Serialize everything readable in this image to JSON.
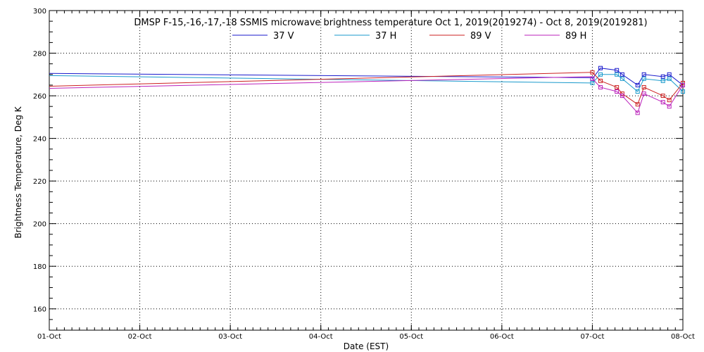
{
  "chart_data": {
    "type": "line",
    "title": "DMSP F-15,-16,-17,-18 SSMIS microwave brightness temperature Oct  1, 2019(2019274) - Oct  8, 2019(2019281)",
    "xlabel": "Date (EST)",
    "ylabel": "Brightness Temperature, Deg K",
    "xlim": [
      1,
      8
    ],
    "ylim": [
      150,
      300
    ],
    "x_unit": "day of October 2019",
    "x_ticks": [
      {
        "value": 1,
        "label": "01-Oct"
      },
      {
        "value": 2,
        "label": "02-Oct"
      },
      {
        "value": 3,
        "label": "03-Oct"
      },
      {
        "value": 4,
        "label": "04-Oct"
      },
      {
        "value": 5,
        "label": "05-Oct"
      },
      {
        "value": 6,
        "label": "06-Oct"
      },
      {
        "value": 7,
        "label": "07-Oct"
      },
      {
        "value": 8,
        "label": "08-Oct"
      }
    ],
    "y_ticks": [
      160,
      180,
      200,
      220,
      240,
      260,
      280,
      300
    ],
    "grid": true,
    "legend_placement": "top-center",
    "series": [
      {
        "name": "37 V",
        "color": "#1a1acc",
        "trend": [
          [
            1,
            270.5
          ],
          [
            7,
            268.5
          ]
        ],
        "points": [
          [
            7.0,
            268
          ],
          [
            7.09,
            273
          ],
          [
            7.27,
            272
          ],
          [
            7.33,
            270
          ],
          [
            7.5,
            265
          ],
          [
            7.57,
            270
          ],
          [
            7.78,
            269
          ],
          [
            7.85,
            270
          ],
          [
            8.0,
            265
          ]
        ]
      },
      {
        "name": "37 H",
        "color": "#1a9acc",
        "trend": [
          [
            1,
            269.5
          ],
          [
            7,
            266
          ]
        ],
        "points": [
          [
            7.0,
            266
          ],
          [
            7.09,
            270
          ],
          [
            7.27,
            270
          ],
          [
            7.33,
            268
          ],
          [
            7.5,
            262
          ],
          [
            7.57,
            268
          ],
          [
            7.78,
            267
          ],
          [
            7.85,
            268
          ],
          [
            8.0,
            262
          ]
        ]
      },
      {
        "name": "89 V",
        "color": "#cc2222",
        "trend": [
          [
            1,
            264.5
          ],
          [
            7,
            271
          ]
        ],
        "points": [
          [
            7.0,
            271
          ],
          [
            7.09,
            267
          ],
          [
            7.27,
            264
          ],
          [
            7.33,
            261
          ],
          [
            7.5,
            256
          ],
          [
            7.57,
            264
          ],
          [
            7.78,
            260
          ],
          [
            7.85,
            258
          ],
          [
            8.0,
            266
          ]
        ]
      },
      {
        "name": "89 H",
        "color": "#bb22bb",
        "trend": [
          [
            1,
            263.5
          ],
          [
            7,
            269
          ]
        ],
        "points": [
          [
            7.0,
            268
          ],
          [
            7.09,
            264
          ],
          [
            7.27,
            262
          ],
          [
            7.33,
            260
          ],
          [
            7.5,
            252
          ],
          [
            7.57,
            261
          ],
          [
            7.78,
            257
          ],
          [
            7.85,
            255
          ],
          [
            8.0,
            265
          ]
        ]
      }
    ]
  }
}
